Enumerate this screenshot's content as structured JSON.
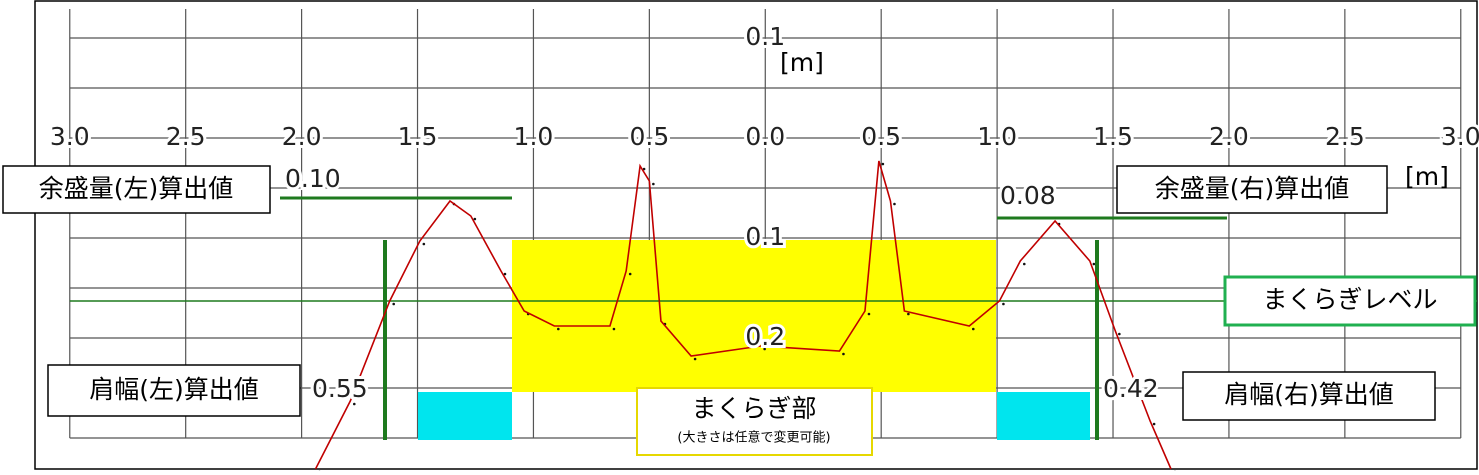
{
  "chart_data": {
    "type": "line",
    "xlabel": "[m]",
    "ylabel": "[m]",
    "xlim": [
      -3.15,
      3.07
    ],
    "ylim": [
      -0.331,
      0.137
    ],
    "xticks": [
      {
        "value": -3,
        "label": "3.0"
      },
      {
        "value": -2.5,
        "label": "2.5"
      },
      {
        "value": -2,
        "label": "2.0"
      },
      {
        "value": -1.5,
        "label": "1.5"
      },
      {
        "value": -1,
        "label": "1.0"
      },
      {
        "value": -0.5,
        "label": "0.5"
      },
      {
        "value": 0,
        "label": "0.0"
      },
      0.5,
      {
        "value": 1,
        "label": "1.0"
      },
      1.5,
      {
        "value": 2,
        "label": "2.0"
      },
      2.5,
      {
        "value": 3,
        "label": "3.0"
      }
    ],
    "yticks": [
      0.1,
      {
        "value": -0.1,
        "label": "0.1"
      },
      {
        "value": -0.2,
        "label": "0.2"
      }
    ],
    "ygrid": [
      0.1,
      0.05,
      0,
      -0.05,
      -0.1,
      -0.15,
      -0.2,
      -0.25,
      -0.3
    ],
    "grid": true,
    "sleeper_level": -0.163,
    "sleeper_level_color": "#1e7a1e",
    "series": [
      {
        "color": "#c00000",
        "x": [
          -1.94,
          -1.79,
          -1.62,
          -1.49,
          -1.36,
          -1.27,
          -1.14,
          -1.04,
          -0.91,
          -0.67,
          -0.6,
          -0.54,
          -0.5,
          -0.45,
          -0.32,
          -0.02,
          0.32,
          0.43,
          0.49,
          0.54,
          0.6,
          0.88,
          1.01,
          1.1,
          1.25,
          1.4,
          1.51,
          1.66,
          1.75
        ],
        "values": [
          -0.331,
          -0.263,
          -0.163,
          -0.103,
          -0.063,
          -0.078,
          -0.133,
          -0.173,
          -0.188,
          -0.188,
          -0.133,
          -0.028,
          -0.043,
          -0.183,
          -0.218,
          -0.208,
          -0.213,
          -0.173,
          -0.023,
          -0.063,
          -0.173,
          -0.188,
          -0.163,
          -0.123,
          -0.083,
          -0.123,
          -0.193,
          -0.283,
          -0.331
        ]
      }
    ],
    "annotations": {
      "surplus_left": "余盛量(左)算出値",
      "surplus_left_value": {
        "value": 0.1,
        "label": "0.10"
      },
      "surplus_right": "余盛量(右)算出値",
      "surplus_right_value": 0.08,
      "shoulder_left": "肩幅(左)算出値",
      "shoulder_left_value": 0.55,
      "shoulder_right": "肩幅(右)算出値",
      "shoulder_right_value": 0.42,
      "sleeper_level": "まくらぎレベル",
      "sleeper_part": "まくらぎ部",
      "sleeper_note": "(大きさは任意で変更可能)"
    }
  }
}
